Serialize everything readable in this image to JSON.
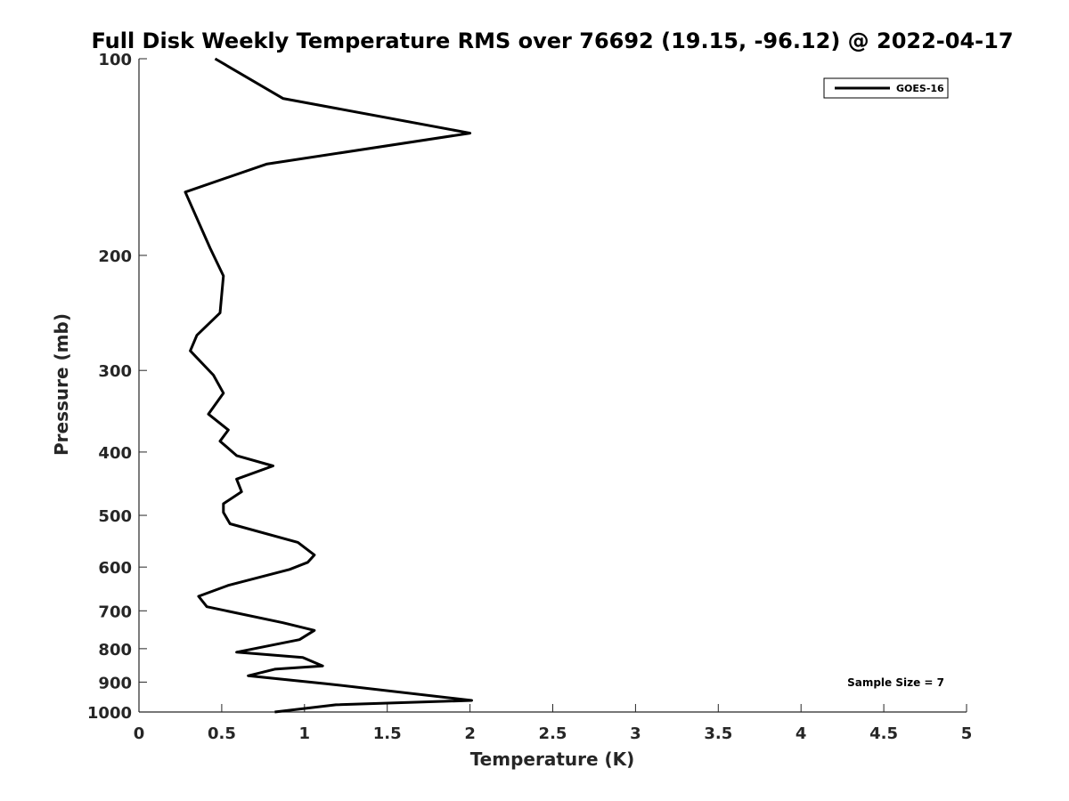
{
  "chart_data": {
    "type": "line",
    "title": "Full Disk Weekly Temperature RMS over 76692 (19.15, -96.12) @ 2022-04-17",
    "xlabel": "Temperature (K)",
    "ylabel": "Pressure (mb)",
    "xlim": [
      0,
      5
    ],
    "ylim": [
      100,
      1000
    ],
    "y_scale": "log",
    "y_reversed": true,
    "grid": false,
    "legend_placement": "top-right",
    "x_ticks": [
      "0",
      "0.5",
      "1",
      "1.5",
      "2",
      "2.5",
      "3",
      "3.5",
      "4",
      "4.5",
      "5"
    ],
    "y_ticks": [
      "100",
      "200",
      "300",
      "400",
      "500",
      "600",
      "700",
      "800",
      "900",
      "1000"
    ],
    "annotation": "Sample Size = 7",
    "series": [
      {
        "name": "GOES-16",
        "color": "#000000",
        "points": [
          [
            0.46,
            100
          ],
          [
            0.87,
            115
          ],
          [
            2.0,
            130
          ],
          [
            0.77,
            145
          ],
          [
            0.28,
            160
          ],
          [
            0.43,
            195
          ],
          [
            0.51,
            215
          ],
          [
            0.49,
            245
          ],
          [
            0.35,
            265
          ],
          [
            0.31,
            280
          ],
          [
            0.45,
            305
          ],
          [
            0.51,
            325
          ],
          [
            0.42,
            350
          ],
          [
            0.54,
            370
          ],
          [
            0.49,
            385
          ],
          [
            0.59,
            405
          ],
          [
            0.81,
            420
          ],
          [
            0.59,
            440
          ],
          [
            0.62,
            460
          ],
          [
            0.51,
            480
          ],
          [
            0.51,
            495
          ],
          [
            0.55,
            515
          ],
          [
            0.96,
            550
          ],
          [
            1.06,
            575
          ],
          [
            1.02,
            590
          ],
          [
            0.91,
            605
          ],
          [
            0.54,
            640
          ],
          [
            0.36,
            665
          ],
          [
            0.41,
            690
          ],
          [
            0.87,
            730
          ],
          [
            1.06,
            750
          ],
          [
            0.97,
            775
          ],
          [
            0.59,
            810
          ],
          [
            0.99,
            825
          ],
          [
            1.11,
            850
          ],
          [
            0.82,
            860
          ],
          [
            0.66,
            880
          ],
          [
            1.13,
            905
          ],
          [
            2.01,
            960
          ],
          [
            1.19,
            975
          ],
          [
            0.82,
            1000
          ]
        ]
      }
    ]
  }
}
